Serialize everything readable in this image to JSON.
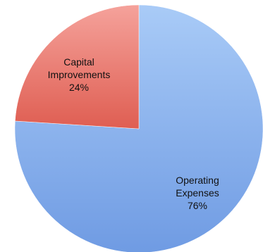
{
  "chart_data": {
    "type": "pie",
    "title": "",
    "slices": [
      {
        "label_lines": [
          "Operating",
          "Expenses"
        ],
        "value": 76,
        "display": "76%",
        "color_light": "#a9cbf7",
        "color_dark": "#6f9be3"
      },
      {
        "label_lines": [
          "Capital",
          "Improvements"
        ],
        "value": 24,
        "display": "24%",
        "color_light": "#f5a29b",
        "color_dark": "#df5e52"
      }
    ],
    "start_angle": "12 o'clock",
    "direction": "clockwise"
  }
}
